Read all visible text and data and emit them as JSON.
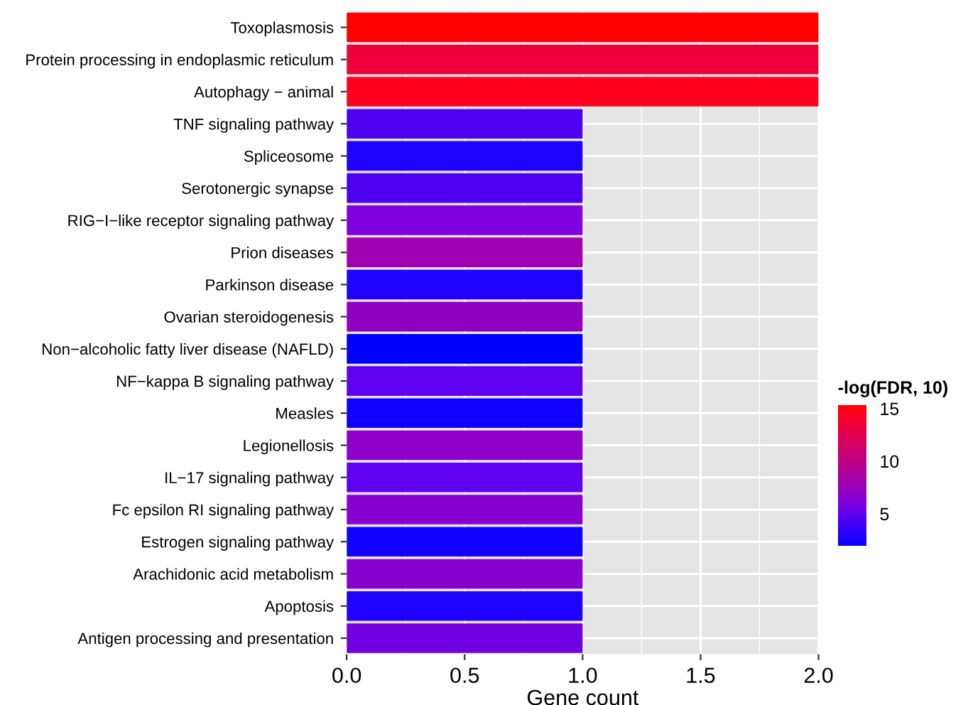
{
  "chart_data": {
    "type": "bar",
    "orientation": "horizontal",
    "xlabel": "Gene count",
    "clabel": "-log(FDR, 10)",
    "categories": [
      "Toxoplasmosis",
      "Protein processing in endoplasmic reticulum",
      "Autophagy − animal",
      "TNF signaling pathway",
      "Spliceosome",
      "Serotonergic synapse",
      "RIG−I−like receptor signaling pathway",
      "Prion diseases",
      "Parkinson disease",
      "Ovarian steroidogenesis",
      "Non−alcoholic fatty liver disease (NAFLD)",
      "NF−kappa B signaling pathway",
      "Measles",
      "Legionellosis",
      "IL−17 signaling pathway",
      "Fc epsilon RI signaling pathway",
      "Estrogen signaling pathway",
      "Arachidonic acid metabolism",
      "Apoptosis",
      "Antigen processing and presentation"
    ],
    "values": [
      2,
      2,
      2,
      1,
      1,
      1,
      1,
      1,
      1,
      1,
      1,
      1,
      1,
      1,
      1,
      1,
      1,
      1,
      1,
      1
    ],
    "cvalues": [
      15.3,
      13.5,
      14.5,
      4.5,
      2.8,
      4.5,
      6,
      8,
      2.8,
      7,
      1.9,
      5,
      2.3,
      7,
      5,
      6.5,
      2.3,
      6.5,
      2.8,
      5.5
    ],
    "colors": [
      "#ff0000",
      "#f0003a",
      "#ff0020",
      "#5000f0",
      "#2000ff",
      "#5000f0",
      "#8000e0",
      "#a000b0",
      "#2000ff",
      "#9000c0",
      "#0000ff",
      "#6000f0",
      "#1000ff",
      "#9000c8",
      "#6000f0",
      "#8800d0",
      "#1000ff",
      "#8800d0",
      "#2000ff",
      "#7000e0"
    ],
    "clim": [
      1.9,
      15.3
    ],
    "cticks": [
      5,
      10,
      15
    ],
    "xlim": [
      0,
      2
    ],
    "xticks": [
      {
        "value": 0,
        "label": "0.0"
      },
      {
        "value": 0.5,
        "label": "0.5"
      },
      {
        "value": 1,
        "label": "1.0"
      },
      {
        "value": 1.5,
        "label": "1.5"
      },
      {
        "value": 2,
        "label": "2.0"
      }
    ],
    "grid": true
  }
}
